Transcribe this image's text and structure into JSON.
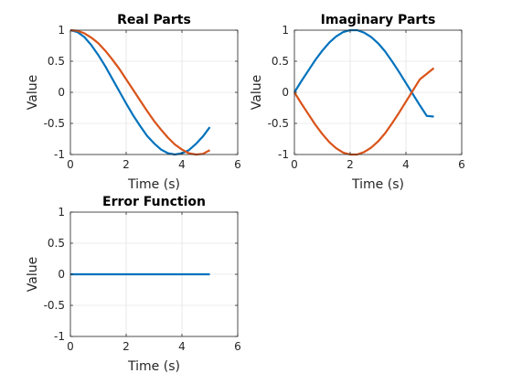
{
  "chart_data": [
    {
      "type": "line",
      "title": "Real Parts",
      "xlabel": "Time (s)",
      "ylabel": "Value",
      "xlim": [
        0,
        6
      ],
      "ylim": [
        -1,
        1
      ],
      "xticks": [
        "0",
        "2",
        "4",
        "6"
      ],
      "yticks": [
        "-1",
        "-0.5",
        "0",
        "0.5",
        "1"
      ],
      "grid": true,
      "series": [
        {
          "color": "#0072bd",
          "x": [
            0,
            0.25,
            0.5,
            0.75,
            1.0,
            1.25,
            1.5,
            1.75,
            2.0,
            2.25,
            2.5,
            2.75,
            3.0,
            3.25,
            3.5,
            3.75,
            4.0,
            4.25,
            4.5,
            4.75,
            5.0
          ],
          "y": [
            1.0,
            0.97,
            0.89,
            0.76,
            0.6,
            0.42,
            0.22,
            0.02,
            -0.18,
            -0.37,
            -0.54,
            -0.7,
            -0.82,
            -0.92,
            -0.98,
            -1.0,
            -0.98,
            -0.93,
            -0.83,
            -0.71,
            -0.56
          ]
        },
        {
          "color": "#d95319",
          "x": [
            0,
            0.25,
            0.5,
            0.75,
            1.0,
            1.25,
            1.5,
            1.75,
            2.0,
            2.25,
            2.5,
            2.75,
            3.0,
            3.25,
            3.5,
            3.75,
            4.0,
            4.25,
            4.5,
            4.75,
            5.0
          ],
          "y": [
            1.0,
            0.99,
            0.95,
            0.88,
            0.79,
            0.67,
            0.53,
            0.38,
            0.21,
            0.04,
            -0.13,
            -0.3,
            -0.46,
            -0.6,
            -0.73,
            -0.84,
            -0.92,
            -0.98,
            -1.0,
            -0.99,
            -0.93
          ]
        }
      ]
    },
    {
      "type": "line",
      "title": "Imaginary Parts",
      "xlabel": "Time (s)",
      "ylabel": "Value",
      "xlim": [
        0,
        6
      ],
      "ylim": [
        -1,
        1
      ],
      "xticks": [
        "0",
        "2",
        "4",
        "6"
      ],
      "yticks": [
        "-1",
        "-0.5",
        "0",
        "0.5",
        "1"
      ],
      "grid": true,
      "series": [
        {
          "color": "#0072bd",
          "x": [
            0,
            0.25,
            0.5,
            0.75,
            1.0,
            1.25,
            1.5,
            1.75,
            2.0,
            2.25,
            2.5,
            2.75,
            3.0,
            3.25,
            3.5,
            3.75,
            4.0,
            4.25,
            4.5,
            4.75,
            5.0
          ],
          "y": [
            0.0,
            0.18,
            0.35,
            0.52,
            0.67,
            0.8,
            0.9,
            0.97,
            1.0,
            1.0,
            0.96,
            0.89,
            0.79,
            0.66,
            0.5,
            0.33,
            0.15,
            -0.03,
            -0.21,
            -0.38,
            -0.39
          ]
        },
        {
          "color": "#d95319",
          "x": [
            0,
            0.25,
            0.5,
            0.75,
            1.0,
            1.25,
            1.5,
            1.75,
            2.0,
            2.25,
            2.5,
            2.75,
            3.0,
            3.25,
            3.5,
            3.75,
            4.0,
            4.25,
            4.5,
            4.75,
            5.0
          ],
          "y": [
            0.0,
            -0.18,
            -0.35,
            -0.52,
            -0.67,
            -0.8,
            -0.9,
            -0.97,
            -1.0,
            -1.0,
            -0.96,
            -0.89,
            -0.79,
            -0.66,
            -0.5,
            -0.33,
            -0.15,
            0.03,
            0.21,
            0.3,
            0.39
          ]
        }
      ]
    },
    {
      "type": "line",
      "title": "Error Function",
      "xlabel": "Time (s)",
      "ylabel": "Value",
      "xlim": [
        0,
        6
      ],
      "ylim": [
        -1,
        1
      ],
      "xticks": [
        "0",
        "2",
        "4",
        "6"
      ],
      "yticks": [
        "-1",
        "-0.5",
        "0",
        "0.5",
        "1"
      ],
      "grid": true,
      "series": [
        {
          "color": "#0072bd",
          "x": [
            0,
            1,
            2,
            3,
            4,
            5
          ],
          "y": [
            0,
            0,
            0,
            0,
            0,
            0
          ]
        }
      ]
    }
  ]
}
